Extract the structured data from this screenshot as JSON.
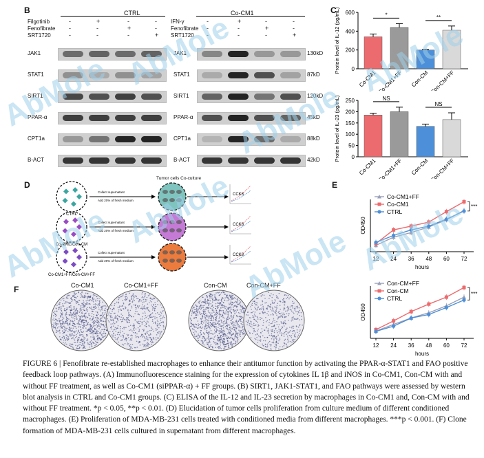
{
  "panels": {
    "B": "B",
    "C": "C",
    "D": "D",
    "E": "E",
    "F": "F"
  },
  "panel_b": {
    "left_group": "CTRL",
    "right_group": "Co-CM1",
    "left_treatments": [
      {
        "name": "Filgotinib",
        "marks": [
          "-",
          "+",
          "-",
          "-"
        ]
      },
      {
        "name": "Fenofibrate",
        "marks": [
          "-",
          "-",
          "+",
          "-"
        ]
      },
      {
        "name": "SRT1720",
        "marks": [
          "-",
          "-",
          "-",
          "+"
        ]
      }
    ],
    "right_treatments": [
      {
        "name": "IFN-γ",
        "marks": [
          "-",
          "+",
          "-",
          "-"
        ]
      },
      {
        "name": "Fenofibrate",
        "marks": [
          "-",
          "-",
          "+",
          "-"
        ]
      },
      {
        "name": "SRT1720",
        "marks": [
          "-",
          "-",
          "-",
          "+"
        ]
      }
    ],
    "blots": [
      {
        "protein": "JAK1",
        "size": "130kD"
      },
      {
        "protein": "STAT1",
        "size": "87kD"
      },
      {
        "protein": "SIRT1",
        "size": "120kD"
      },
      {
        "protein": "PPAR-α",
        "size": "45kD"
      },
      {
        "protein": "CPT1a",
        "size": "88kD"
      },
      {
        "protein": "B-ACT",
        "size": "42kD"
      }
    ]
  },
  "panel_d": {
    "title": "Tumor cells Co-culture",
    "arrow_text1": "Collect supernatant",
    "arrow_text2": "Add 20% of fresh medium",
    "rows": [
      {
        "label": "CTRL",
        "assay": "CCK8"
      },
      {
        "label": "Co-CM1/Con-CM",
        "assay": "CCK8"
      },
      {
        "label": "Co-CM1+FF/Con-CM+FF",
        "assay": "CCK8"
      }
    ]
  },
  "panel_f": {
    "labels": [
      "Co-CM1",
      "Co-CM1+FF",
      "Con-CM",
      "Con-CM+FF"
    ]
  },
  "watermark": "AbMole",
  "chart_data": [
    {
      "type": "bar",
      "id": "C-top",
      "title": "",
      "ylabel": "Protein level of IL-12 (pg/mL)",
      "ylim": [
        0,
        600
      ],
      "yticks": [
        0,
        200,
        400,
        600
      ],
      "categories": [
        "Co-CM1",
        "Co-CM1+FF",
        "Con-CM",
        "Con-CM+FF"
      ],
      "values": [
        340,
        440,
        200,
        410
      ],
      "errors": [
        30,
        40,
        8,
        45
      ],
      "colors": [
        "#ec6b6e",
        "#9a9a9a",
        "#4d8fd8",
        "#d9d9d9"
      ],
      "significance": [
        {
          "pair": [
            0,
            1
          ],
          "label": "*"
        },
        {
          "pair": [
            2,
            3
          ],
          "label": "**"
        }
      ]
    },
    {
      "type": "bar",
      "id": "C-bottom",
      "title": "",
      "ylabel": "Protein level of IL-23 (pg/mL)",
      "ylim": [
        0,
        250
      ],
      "yticks": [
        0,
        50,
        100,
        150,
        200,
        250
      ],
      "categories": [
        "Co-CM1",
        "Co-CM1+FF",
        "Con-CM",
        "Con-CM+FF"
      ],
      "values": [
        185,
        200,
        135,
        165
      ],
      "errors": [
        8,
        20,
        10,
        30
      ],
      "colors": [
        "#ec6b6e",
        "#9a9a9a",
        "#4d8fd8",
        "#d9d9d9"
      ],
      "significance": [
        {
          "pair": [
            0,
            1
          ],
          "label": "NS"
        },
        {
          "pair": [
            2,
            3
          ],
          "label": "NS"
        }
      ]
    },
    {
      "type": "line",
      "id": "E-top",
      "xlabel": "hours",
      "ylabel": "OD450",
      "x": [
        12,
        24,
        36,
        48,
        60,
        72
      ],
      "series": [
        {
          "name": "Co-CM1+FF",
          "color": "#9aa0b8",
          "marker": "triangle",
          "values": [
            0.42,
            0.7,
            0.86,
            1.05,
            1.3,
            1.62
          ]
        },
        {
          "name": "Co-CM1",
          "color": "#ec6b6e",
          "marker": "square",
          "values": [
            0.48,
            0.95,
            1.08,
            1.22,
            1.58,
            1.92
          ]
        },
        {
          "name": "CTRL",
          "color": "#4d8fd8",
          "marker": "circle",
          "values": [
            0.52,
            0.76,
            0.95,
            1.08,
            1.32,
            1.6
          ]
        }
      ],
      "significance": "***"
    },
    {
      "type": "line",
      "id": "E-bottom",
      "xlabel": "hours",
      "ylabel": "OD450",
      "x": [
        12,
        24,
        36,
        48,
        60,
        72
      ],
      "series": [
        {
          "name": "Con-CM+FF",
          "color": "#9aa0b8",
          "marker": "triangle",
          "values": [
            0.45,
            0.68,
            0.9,
            1.08,
            1.32,
            1.62
          ]
        },
        {
          "name": "Con-CM",
          "color": "#ec6b6e",
          "marker": "square",
          "values": [
            0.5,
            0.8,
            1.12,
            1.38,
            1.62,
            1.95
          ]
        },
        {
          "name": "CTRL",
          "color": "#4d8fd8",
          "marker": "circle",
          "values": [
            0.44,
            0.62,
            0.9,
            1.02,
            1.26,
            1.52
          ]
        }
      ],
      "significance": "***"
    }
  ],
  "caption": "FIGURE 6 | Fenofibrate re-established macrophages to enhance their antitumor function by activating the PPAR-α-STAT1 and FAO positive feedback loop pathways. (A) Immunofluorescence staining for the expression of cytokines IL 1β and iNOS in Co-CM1, Con-CM with and without FF treatment, as well as Co-CM1 (siPPAR-α) + FF groups. (B) SIRT1, JAK1-STAT1, and FAO pathways were assessed by western blot analysis in CTRL and Co-CM1 groups. (C) ELISA of the IL-12 and IL-23 secretion by macrophages in Co-CM1 and, Con-CM with and without FF treatment. *p < 0.05, **p < 0.01. (D) Elucidation of tumor cells proliferation from culture medium of different conditioned macrophages. (E) Proliferation of MDA-MB-231 cells treated with conditioned media from different macrophages. ***p < 0.001. (F) Clone formation of MDA-MB-231 cells cultured in supernatant from different macrophages."
}
